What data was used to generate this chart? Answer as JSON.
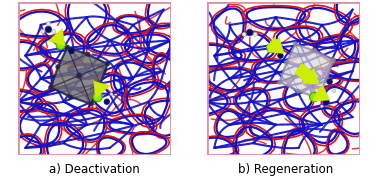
{
  "panel_a_label": "a) Deactivation",
  "panel_b_label": "b) Regeneration",
  "background_color": "#ffffff",
  "border_color": "#e090a0",
  "text_color": "#000000",
  "label_fontsize": 8.5,
  "fig_width": 3.78,
  "fig_height": 1.84,
  "dpi": 100,
  "red_line_color": "#dd1111",
  "blue_line_color": "#1111cc",
  "green_sphere": "#88ee00",
  "dark_blue_sphere": "#0a0a60",
  "white_sphere": "#e8e8e8",
  "arrow_color": "#ccee00",
  "cage_dark": "#606060",
  "cage_light": "#cccccc"
}
